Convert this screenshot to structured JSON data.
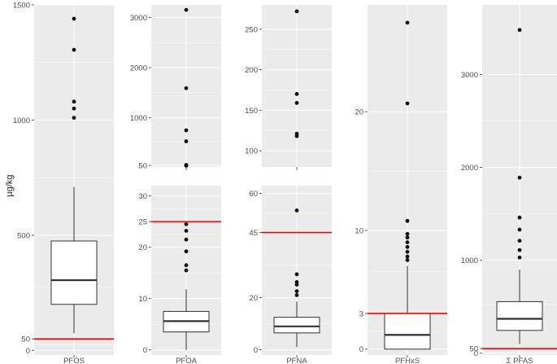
{
  "ylabel": "µg/kg",
  "colors": {
    "panel": "#ebebeb",
    "grid": "#ffffff",
    "threshold": "#ff0000",
    "box_fill": "#ffffff",
    "box_line": "#333333",
    "point": "#111111",
    "text": "#4d4d4d"
  },
  "chart_data": [
    {
      "type": "boxplot",
      "category": "PFOS",
      "ylim": [
        -20,
        1500
      ],
      "yticks": [
        0,
        50,
        500,
        1000,
        1500
      ],
      "ytick_labels": [
        "0",
        "50",
        "500",
        "1000",
        "1500"
      ],
      "box": {
        "q1": 200,
        "median": 305,
        "q3": 475,
        "whisker_low": 75,
        "whisker_high": 710
      },
      "outliers": [
        1010,
        1050,
        1080,
        1305,
        1440
      ],
      "threshold": 50
    },
    {
      "type": "boxplot",
      "category": "PFOA",
      "broken_axis": true,
      "upper_ylim": [
        20,
        3250
      ],
      "upper_yticks": [
        50,
        1000,
        2000,
        3000
      ],
      "upper_ytick_labels": [
        "50",
        "1000",
        "2000",
        "3000"
      ],
      "upper_outliers": [
        45,
        60,
        530,
        750,
        1590,
        3150
      ],
      "lower_ylim": [
        -1,
        32
      ],
      "lower_yticks": [
        0,
        10,
        20,
        25,
        30
      ],
      "lower_ytick_labels": [
        "0",
        "10",
        "20",
        "25",
        "30"
      ],
      "box": {
        "q1": 3.5,
        "median": 5.6,
        "q3": 7.5,
        "whisker_low": 0,
        "whisker_high": 11.8
      },
      "outliers": [
        15.5,
        16.5,
        19.2,
        21.5,
        23.2,
        24.5
      ],
      "threshold": 25
    },
    {
      "type": "boxplot",
      "category": "PFNA",
      "broken_axis": true,
      "upper_ylim": [
        80,
        280
      ],
      "upper_yticks": [
        100,
        150,
        200,
        250
      ],
      "upper_ytick_labels": [
        "100",
        "150",
        "200",
        "250"
      ],
      "upper_outliers": [
        118,
        121,
        159,
        170,
        272
      ],
      "lower_ylim": [
        -2,
        63
      ],
      "lower_yticks": [
        0,
        20,
        45,
        60
      ],
      "lower_ytick_labels": [
        "0",
        "20",
        "45",
        "60"
      ],
      "box": {
        "q1": 6.5,
        "median": 9,
        "q3": 12.5,
        "whisker_low": 1,
        "whisker_high": 18.5
      },
      "outliers": [
        21,
        22.5,
        25,
        26,
        29,
        53.5
      ],
      "threshold": 45
    },
    {
      "type": "boxplot",
      "category": "PFHxS",
      "ylim": [
        -0.5,
        29
      ],
      "yticks": [
        0,
        3,
        10,
        20
      ],
      "ytick_labels": [
        "0",
        "3",
        "10",
        "20"
      ],
      "box": {
        "q1": 0,
        "median": 1.2,
        "q3": 3,
        "whisker_low": 0,
        "whisker_high": 7
      },
      "outliers": [
        7.5,
        7.8,
        8.2,
        8.6,
        9.0,
        9.4,
        9.7,
        10.8,
        20.7,
        27.5
      ],
      "threshold": 3
    },
    {
      "type": "boxplot",
      "category": "Σ PFAS",
      "ylim": [
        -20,
        3750
      ],
      "yticks": [
        0,
        50,
        1000,
        2000,
        3000
      ],
      "ytick_labels": [
        "0",
        "50",
        "1000",
        "2000",
        "3000"
      ],
      "box": {
        "q1": 245,
        "median": 370,
        "q3": 555,
        "whisker_low": 100,
        "whisker_high": 900
      },
      "outliers": [
        1030,
        1110,
        1210,
        1330,
        1460,
        1890,
        3480
      ],
      "threshold": 50
    }
  ]
}
